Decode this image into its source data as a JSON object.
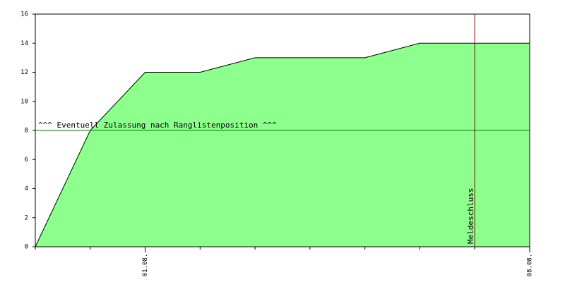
{
  "chart_data": {
    "type": "area",
    "x": [
      -2,
      -1,
      0,
      1,
      2,
      4,
      5,
      7
    ],
    "values": [
      0,
      8,
      12,
      12,
      13,
      13,
      14,
      14
    ],
    "color": "#8cff8c",
    "line_color": "#000000",
    "xlim": [
      -2,
      7
    ],
    "xticks": [
      {
        "value": 0,
        "label": "01.08."
      },
      {
        "value": 7,
        "label": "08.08."
      }
    ],
    "xminorticks": [
      -2,
      -1,
      1,
      2,
      3,
      4,
      5,
      6
    ],
    "ylim": [
      0,
      16
    ],
    "yticks": [
      0,
      2,
      4,
      6,
      8,
      10,
      12,
      14,
      16
    ],
    "hline": {
      "value": 8,
      "label": "^^^ Eventuell Zulassung nach Ranglistenposition ^^^",
      "color": "#008000"
    },
    "vline": {
      "value": 6,
      "label": "Meldeschluss",
      "color": "#800000"
    }
  }
}
